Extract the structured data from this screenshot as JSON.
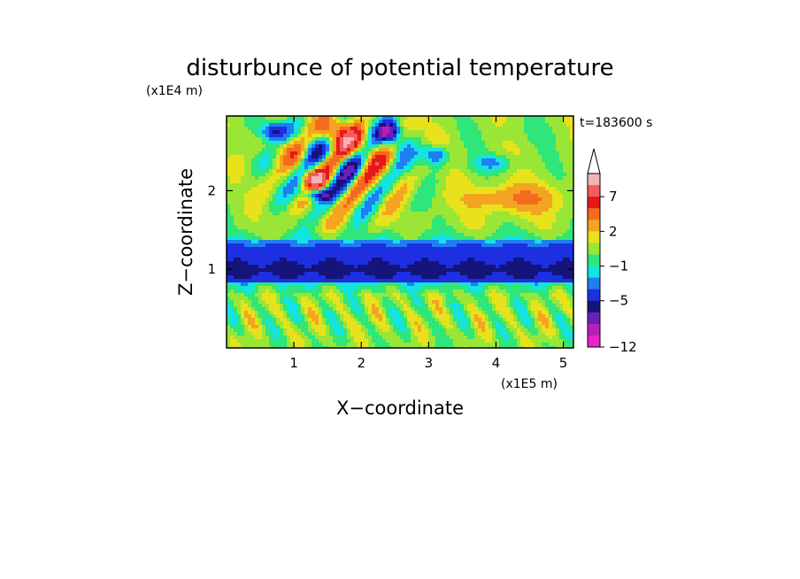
{
  "chart_data": {
    "type": "heatmap",
    "title": "disturbunce of potential temperature",
    "xlabel": "X−coordinate",
    "ylabel": "Z−coordinate",
    "x_scale_label": "(x1E5 m)",
    "y_scale_label": "(x1E4 m)",
    "time_label": "t=183600 s",
    "xlim": [
      0,
      5.15
    ],
    "ylim": [
      0,
      2.95
    ],
    "xticks": [
      1,
      2,
      3,
      4,
      5
    ],
    "yticks": [
      1,
      2
    ],
    "colorbar": {
      "tick_labels": [
        "7",
        "2",
        "−1",
        "−5",
        "−12"
      ],
      "bands": [
        {
          "lo": 9,
          "hi": 11,
          "color": "#f4b3b7"
        },
        {
          "lo": 7,
          "hi": 9,
          "color": "#f45c5c"
        },
        {
          "lo": 5,
          "hi": 7,
          "color": "#e61919"
        },
        {
          "lo": 3.5,
          "hi": 5,
          "color": "#f56b1e"
        },
        {
          "lo": 2,
          "hi": 3.5,
          "color": "#f5a421"
        },
        {
          "lo": 1,
          "hi": 2,
          "color": "#e8e21c"
        },
        {
          "lo": 0,
          "hi": 1,
          "color": "#99e636"
        },
        {
          "lo": -1,
          "hi": 0,
          "color": "#2ee67a"
        },
        {
          "lo": -2,
          "hi": -1,
          "color": "#14e3e3"
        },
        {
          "lo": -3.5,
          "hi": -2,
          "color": "#1f7ff0"
        },
        {
          "lo": -5,
          "hi": -3.5,
          "color": "#1d2fe0"
        },
        {
          "lo": -6.5,
          "hi": -5,
          "color": "#14147a"
        },
        {
          "lo": -8,
          "hi": -6.5,
          "color": "#6b1fb8"
        },
        {
          "lo": -10,
          "hi": -8,
          "color": "#b81fb8"
        },
        {
          "lo": -12,
          "hi": -10,
          "color": "#eb22c8"
        }
      ],
      "extend_max_color": "#ffffff"
    }
  }
}
